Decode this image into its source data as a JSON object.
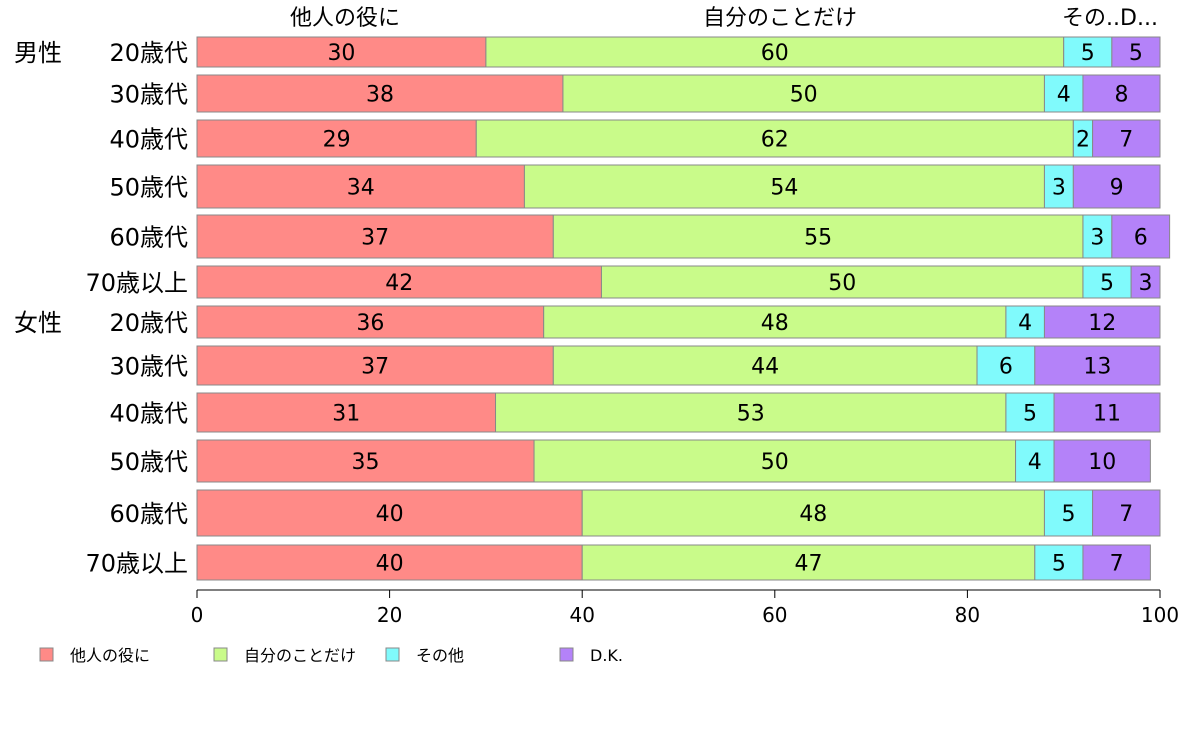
{
  "chart_data": {
    "type": "bar",
    "orientation": "horizontal",
    "stacked": true,
    "groups": [
      {
        "name": "男性",
        "start": 0
      },
      {
        "name": "女性",
        "start": 6
      }
    ],
    "categories": [
      "20歳代",
      "30歳代",
      "40歳代",
      "50歳代",
      "60歳代",
      "70歳以上",
      "20歳代",
      "30歳代",
      "40歳代",
      "50歳代",
      "60歳代",
      "70歳以上"
    ],
    "series": [
      {
        "name": "他人の役に",
        "color": "#ff8a87",
        "values": [
          30,
          38,
          29,
          34,
          37,
          42,
          36,
          37,
          31,
          35,
          40,
          40
        ]
      },
      {
        "name": "自分のことだけ",
        "color": "#c9fb8a",
        "values": [
          60,
          50,
          62,
          54,
          55,
          50,
          48,
          44,
          53,
          50,
          48,
          47
        ]
      },
      {
        "name": "その他",
        "color": "#80fafc",
        "values": [
          5,
          4,
          2,
          3,
          3,
          5,
          4,
          6,
          5,
          4,
          5,
          5
        ]
      },
      {
        "name": "D.K.",
        "color": "#b482f9",
        "values": [
          5,
          8,
          7,
          9,
          6,
          3,
          12,
          13,
          11,
          10,
          7,
          7
        ]
      }
    ],
    "top_labels": [
      "他人の役に",
      "自分のことだけ",
      "その..D..."
    ],
    "xlim": [
      0,
      100
    ],
    "xticks": [
      0,
      20,
      40,
      60,
      80,
      100
    ],
    "xlabel": "",
    "ylabel": "",
    "title": "",
    "legend_position": "bottom",
    "grid": false
  }
}
